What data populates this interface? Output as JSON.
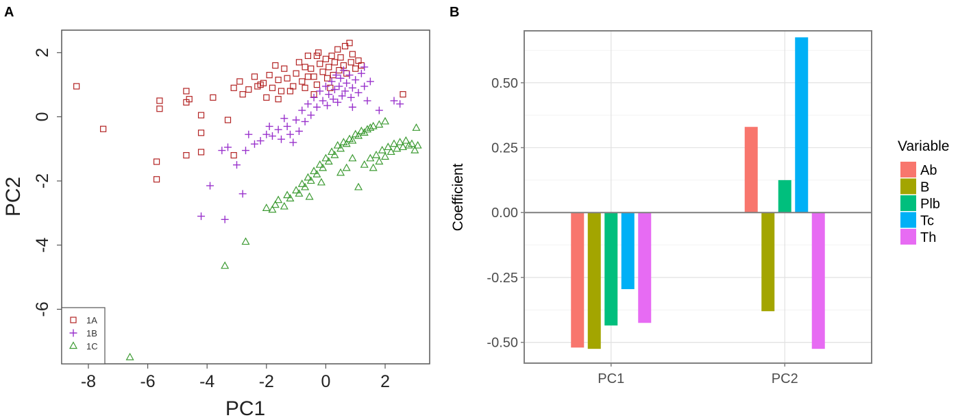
{
  "panels": {
    "a_label": "A",
    "b_label": "B"
  },
  "chart_data": [
    {
      "type": "scatter",
      "xlabel": "PC1",
      "ylabel": "PC2",
      "xlim": [
        -8.9,
        3.5
      ],
      "ylim": [
        -7.7,
        2.7
      ],
      "xticks": [
        -8,
        -6,
        -4,
        -2,
        0,
        2
      ],
      "xtick_labels": [
        "-8",
        "-6",
        "-4",
        "-2",
        "0",
        "2"
      ],
      "yticks": [
        2,
        0,
        -2,
        -4,
        -6
      ],
      "ytick_labels": [
        "2",
        "0",
        "-2",
        "-4",
        "-6"
      ],
      "legend_position": "bottom-left",
      "colors": {
        "1A": "#b22222",
        "1B": "#9932cc",
        "1C": "#3c9a32"
      },
      "series": [
        {
          "name": "1A",
          "marker": "square",
          "points": [
            [
              -8.4,
              0.95
            ],
            [
              -7.5,
              -0.38
            ],
            [
              -5.6,
              0.5
            ],
            [
              -5.6,
              0.25
            ],
            [
              -5.7,
              -1.4
            ],
            [
              -5.7,
              -1.95
            ],
            [
              -4.7,
              0.8
            ],
            [
              -4.7,
              0.45
            ],
            [
              -4.6,
              0.55
            ],
            [
              -4.7,
              -1.2
            ],
            [
              -4.2,
              0.05
            ],
            [
              -4.2,
              -0.5
            ],
            [
              -4.2,
              -1.1
            ],
            [
              -3.8,
              0.6
            ],
            [
              -3.3,
              -0.1
            ],
            [
              -3.1,
              -1.2
            ],
            [
              -3.1,
              0.9
            ],
            [
              -2.9,
              1.1
            ],
            [
              -2.8,
              0.7
            ],
            [
              -2.6,
              0.85
            ],
            [
              -2.4,
              1.25
            ],
            [
              -2.3,
              0.95
            ],
            [
              -2.1,
              1.05
            ],
            [
              -2.0,
              0.6
            ],
            [
              -1.8,
              0.9
            ],
            [
              -1.6,
              1.15
            ],
            [
              -1.6,
              0.55
            ],
            [
              -1.4,
              1.5
            ],
            [
              -1.3,
              1.2
            ],
            [
              -1.2,
              0.8
            ],
            [
              -1.0,
              1.35
            ],
            [
              -0.9,
              1.7
            ],
            [
              -0.8,
              1.1
            ],
            [
              -0.7,
              0.9
            ],
            [
              -0.6,
              1.9
            ],
            [
              -0.5,
              1.5
            ],
            [
              -0.4,
              1.25
            ],
            [
              -0.3,
              1.0
            ],
            [
              -0.2,
              1.65
            ],
            [
              -0.1,
              1.4
            ],
            [
              0.0,
              1.8
            ],
            [
              0.05,
              1.2
            ],
            [
              0.1,
              1.55
            ],
            [
              0.2,
              1.9
            ],
            [
              0.25,
              1.3
            ],
            [
              0.3,
              1.7
            ],
            [
              0.4,
              2.1
            ],
            [
              0.45,
              1.45
            ],
            [
              0.5,
              1.85
            ],
            [
              0.6,
              1.6
            ],
            [
              0.65,
              2.2
            ],
            [
              0.7,
              1.35
            ],
            [
              0.8,
              2.3
            ],
            [
              0.85,
              1.7
            ],
            [
              0.9,
              1.95
            ],
            [
              1.0,
              1.5
            ],
            [
              1.1,
              1.75
            ],
            [
              1.2,
              1.6
            ],
            [
              -0.3,
              1.9
            ],
            [
              -0.7,
              1.55
            ],
            [
              -1.1,
              0.95
            ],
            [
              -1.5,
              0.8
            ],
            [
              -1.9,
              1.3
            ],
            [
              -2.2,
              1.0
            ],
            [
              -1.7,
              1.6
            ],
            [
              -0.4,
              0.7
            ],
            [
              0.15,
              0.9
            ],
            [
              2.6,
              0.7
            ],
            [
              -0.6,
              1.25
            ],
            [
              -0.25,
              2.0
            ]
          ]
        },
        {
          "name": "1B",
          "marker": "plus",
          "points": [
            [
              -3.4,
              -3.2
            ],
            [
              -4.2,
              -3.1
            ],
            [
              -3.9,
              -2.15
            ],
            [
              -2.8,
              -2.4
            ],
            [
              -3.5,
              -1.05
            ],
            [
              -3.3,
              -0.95
            ],
            [
              -3.0,
              -1.5
            ],
            [
              -2.7,
              -1.05
            ],
            [
              -2.4,
              -0.85
            ],
            [
              -2.2,
              -0.75
            ],
            [
              -2.0,
              -0.55
            ],
            [
              -1.9,
              -0.3
            ],
            [
              -1.8,
              -0.6
            ],
            [
              -1.6,
              -0.4
            ],
            [
              -1.5,
              -0.7
            ],
            [
              -1.3,
              -0.3
            ],
            [
              -1.2,
              -0.55
            ],
            [
              -1.0,
              -0.1
            ],
            [
              -0.9,
              -0.45
            ],
            [
              -0.8,
              0.2
            ],
            [
              -0.7,
              -0.15
            ],
            [
              -0.6,
              0.4
            ],
            [
              -0.5,
              0.05
            ],
            [
              -0.4,
              0.6
            ],
            [
              -0.3,
              0.3
            ],
            [
              -0.2,
              0.8
            ],
            [
              -0.1,
              0.5
            ],
            [
              0.0,
              0.95
            ],
            [
              0.05,
              0.35
            ],
            [
              0.1,
              0.7
            ],
            [
              0.2,
              1.1
            ],
            [
              0.25,
              0.55
            ],
            [
              0.3,
              0.85
            ],
            [
              0.35,
              1.3
            ],
            [
              0.4,
              0.45
            ],
            [
              0.45,
              0.95
            ],
            [
              0.5,
              1.2
            ],
            [
              0.55,
              0.65
            ],
            [
              0.6,
              1.45
            ],
            [
              0.65,
              0.8
            ],
            [
              0.7,
              1.05
            ],
            [
              0.8,
              1.3
            ],
            [
              0.85,
              0.6
            ],
            [
              0.9,
              0.9
            ],
            [
              1.0,
              1.15
            ],
            [
              1.1,
              0.75
            ],
            [
              1.2,
              1.35
            ],
            [
              1.3,
              0.95
            ],
            [
              1.4,
              0.5
            ],
            [
              1.5,
              1.1
            ],
            [
              1.3,
              1.55
            ],
            [
              2.3,
              0.5
            ],
            [
              2.5,
              0.4
            ],
            [
              1.8,
              0.2
            ],
            [
              -1.4,
              -0.05
            ],
            [
              -2.6,
              -0.55
            ],
            [
              -1.1,
              -0.8
            ],
            [
              0.9,
              0.3
            ]
          ]
        },
        {
          "name": "1C",
          "marker": "triangle",
          "points": [
            [
              -6.6,
              -7.5
            ],
            [
              -3.4,
              -4.65
            ],
            [
              -2.7,
              -3.9
            ],
            [
              -2.0,
              -2.85
            ],
            [
              -1.8,
              -2.9
            ],
            [
              -1.7,
              -2.75
            ],
            [
              -1.6,
              -2.6
            ],
            [
              -1.4,
              -2.8
            ],
            [
              -1.3,
              -2.45
            ],
            [
              -1.2,
              -2.55
            ],
            [
              -1.0,
              -2.3
            ],
            [
              -0.9,
              -2.4
            ],
            [
              -0.8,
              -2.1
            ],
            [
              -0.7,
              -2.2
            ],
            [
              -0.6,
              -1.9
            ],
            [
              -0.5,
              -2.0
            ],
            [
              -0.4,
              -1.7
            ],
            [
              -0.3,
              -1.8
            ],
            [
              -0.2,
              -1.5
            ],
            [
              -0.1,
              -1.6
            ],
            [
              0.0,
              -1.3
            ],
            [
              0.1,
              -1.4
            ],
            [
              0.2,
              -1.1
            ],
            [
              0.3,
              -1.2
            ],
            [
              0.4,
              -0.9
            ],
            [
              0.5,
              -1.0
            ],
            [
              0.6,
              -0.8
            ],
            [
              0.7,
              -0.85
            ],
            [
              0.8,
              -0.7
            ],
            [
              0.9,
              -0.75
            ],
            [
              1.0,
              -0.55
            ],
            [
              1.1,
              -0.6
            ],
            [
              1.2,
              -0.45
            ],
            [
              1.3,
              -0.5
            ],
            [
              1.4,
              -0.4
            ],
            [
              1.5,
              -0.35
            ],
            [
              1.6,
              -0.3
            ],
            [
              1.8,
              -0.25
            ],
            [
              2.0,
              -0.15
            ],
            [
              1.1,
              -2.2
            ],
            [
              1.3,
              -1.5
            ],
            [
              1.5,
              -1.3
            ],
            [
              1.6,
              -1.6
            ],
            [
              1.7,
              -1.2
            ],
            [
              1.8,
              -1.4
            ],
            [
              1.9,
              -1.05
            ],
            [
              2.0,
              -1.25
            ],
            [
              2.1,
              -0.95
            ],
            [
              2.2,
              -1.1
            ],
            [
              2.3,
              -0.85
            ],
            [
              2.4,
              -1.0
            ],
            [
              2.5,
              -0.8
            ],
            [
              2.6,
              -0.95
            ],
            [
              2.7,
              -0.75
            ],
            [
              2.8,
              -0.9
            ],
            [
              2.9,
              -0.85
            ],
            [
              3.0,
              -1.05
            ],
            [
              3.1,
              -0.9
            ],
            [
              3.05,
              -0.35
            ],
            [
              0.7,
              -1.6
            ],
            [
              0.9,
              -1.3
            ],
            [
              -0.15,
              -2.05
            ],
            [
              0.5,
              -1.75
            ],
            [
              -0.55,
              -2.5
            ]
          ]
        }
      ]
    },
    {
      "type": "bar",
      "xlabel": "",
      "ylabel": "Coefficient",
      "ylim": [
        -0.58,
        0.7
      ],
      "yticks": [
        0.5,
        0.25,
        0.0,
        -0.25,
        -0.5
      ],
      "ytick_labels": [
        "0.50",
        "0.25",
        "0.00",
        "-0.25",
        "-0.50"
      ],
      "categories": [
        "PC1",
        "PC2"
      ],
      "grid": true,
      "legend_position": "right",
      "legend_title": "Variable",
      "series": [
        {
          "name": "Ab",
          "color": "#f8766d",
          "values": [
            -0.52,
            0.33
          ]
        },
        {
          "name": "B",
          "color": "#a3a500",
          "values": [
            -0.525,
            -0.38
          ]
        },
        {
          "name": "Plb",
          "color": "#00bf7d",
          "values": [
            -0.435,
            0.125
          ]
        },
        {
          "name": "Tc",
          "color": "#00b0f6",
          "values": [
            -0.295,
            0.675
          ]
        },
        {
          "name": "Th",
          "color": "#e76bf3",
          "values": [
            -0.425,
            -0.525
          ]
        }
      ]
    }
  ]
}
